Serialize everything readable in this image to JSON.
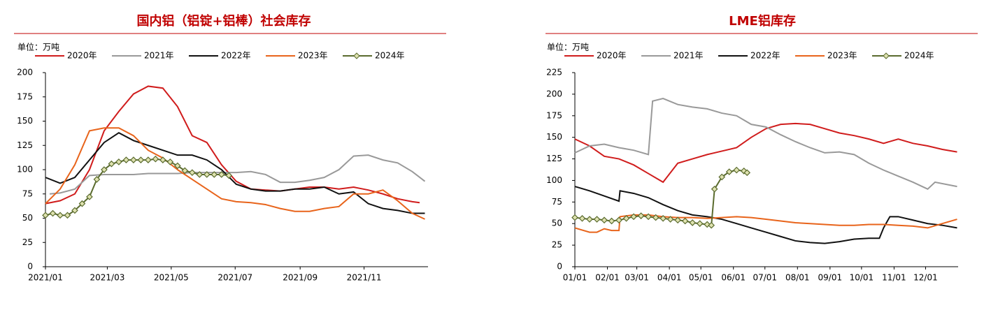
{
  "chart_data": [
    {
      "type": "line",
      "title": "国内铝（铝锭+铝棒）社会库存",
      "unit_label": "单位：万吨",
      "xlim": [
        0,
        365
      ],
      "xticks": [
        {
          "value": 0,
          "label": "2021/01"
        },
        {
          "value": 59,
          "label": "2021/03"
        },
        {
          "value": 120,
          "label": "2021/05"
        },
        {
          "value": 181,
          "label": "2021/07"
        },
        {
          "value": 243,
          "label": "2021/09"
        },
        {
          "value": 304,
          "label": "2021/11"
        }
      ],
      "ylim": [
        0,
        200
      ],
      "yticks": [
        0,
        25,
        50,
        75,
        100,
        125,
        150,
        175,
        200
      ],
      "series": [
        {
          "name": "2020年",
          "color": "#d01c1c",
          "x": [
            0,
            14,
            28,
            42,
            56,
            70,
            84,
            98,
            112,
            126,
            140,
            154,
            168,
            182,
            196,
            210,
            224,
            238,
            252,
            266,
            280,
            294,
            308,
            322,
            336,
            350,
            357
          ],
          "values": [
            65,
            68,
            75,
            100,
            140,
            160,
            178,
            186,
            184,
            165,
            135,
            128,
            105,
            88,
            80,
            79,
            78,
            80,
            82,
            82,
            80,
            82,
            79,
            75,
            70,
            67,
            66
          ]
        },
        {
          "name": "2021年",
          "color": "#999999",
          "x": [
            4,
            14,
            28,
            42,
            56,
            70,
            84,
            98,
            112,
            126,
            140,
            154,
            168,
            182,
            196,
            210,
            224,
            238,
            252,
            266,
            280,
            294,
            308,
            322,
            336,
            350,
            362
          ],
          "values": [
            75,
            76,
            80,
            94,
            95,
            95,
            95,
            96,
            96,
            96,
            97,
            97,
            97,
            97,
            98,
            95,
            87,
            87,
            89,
            92,
            100,
            114,
            115,
            110,
            107,
            98,
            88
          ]
        },
        {
          "name": "2022年",
          "color": "#111111",
          "x": [
            0,
            14,
            28,
            42,
            56,
            70,
            84,
            98,
            112,
            126,
            140,
            154,
            168,
            182,
            196,
            210,
            224,
            238,
            252,
            266,
            280,
            294,
            308,
            322,
            336,
            350,
            362
          ],
          "values": [
            92,
            86,
            92,
            110,
            128,
            138,
            130,
            125,
            120,
            115,
            115,
            110,
            100,
            85,
            80,
            78,
            78,
            80,
            80,
            82,
            75,
            77,
            65,
            60,
            58,
            55,
            55
          ]
        },
        {
          "name": "2023年",
          "color": "#e8641b",
          "x": [
            0,
            14,
            28,
            42,
            56,
            70,
            84,
            98,
            112,
            126,
            140,
            154,
            168,
            182,
            196,
            210,
            224,
            238,
            252,
            266,
            280,
            294,
            308,
            322,
            336,
            350,
            362
          ],
          "values": [
            65,
            80,
            105,
            140,
            143,
            143,
            135,
            120,
            112,
            100,
            90,
            80,
            70,
            67,
            66,
            64,
            60,
            57,
            57,
            60,
            62,
            75,
            75,
            79,
            68,
            55,
            49
          ]
        },
        {
          "name": "2024年",
          "color": "#5a6b2e",
          "marker": "diamond",
          "x": [
            0,
            7,
            14,
            21,
            28,
            35,
            42,
            49,
            56,
            63,
            70,
            77,
            84,
            91,
            98,
            105,
            112,
            119,
            126,
            133,
            140,
            147,
            154,
            161,
            168,
            175
          ],
          "values": [
            53,
            55,
            53,
            53,
            58,
            65,
            72,
            90,
            100,
            106,
            108,
            110,
            110,
            110,
            110,
            111,
            110,
            108,
            104,
            99,
            97,
            95,
            95,
            95,
            95,
            94
          ]
        }
      ]
    },
    {
      "type": "line",
      "title": "LME铝库存",
      "unit_label": "单位：万吨",
      "xlim": [
        0,
        365
      ],
      "xticks": [
        {
          "value": 0,
          "label": "01/01"
        },
        {
          "value": 31,
          "label": "02/01"
        },
        {
          "value": 59,
          "label": "03/01"
        },
        {
          "value": 90,
          "label": "04/01"
        },
        {
          "value": 120,
          "label": "05/01"
        },
        {
          "value": 151,
          "label": "06/01"
        },
        {
          "value": 181,
          "label": "07/01"
        },
        {
          "value": 212,
          "label": "08/01"
        },
        {
          "value": 243,
          "label": "09/01"
        },
        {
          "value": 273,
          "label": "10/01"
        },
        {
          "value": 304,
          "label": "11/01"
        },
        {
          "value": 334,
          "label": "12/01"
        }
      ],
      "ylim": [
        0,
        225
      ],
      "yticks": [
        0,
        25,
        50,
        75,
        100,
        125,
        150,
        175,
        200,
        225
      ],
      "series": [
        {
          "name": "2020年",
          "color": "#d01c1c",
          "x": [
            0,
            14,
            28,
            42,
            56,
            70,
            84,
            98,
            112,
            126,
            140,
            154,
            168,
            182,
            196,
            210,
            224,
            238,
            252,
            266,
            280,
            294,
            308,
            322,
            336,
            350,
            364
          ],
          "values": [
            148,
            140,
            128,
            125,
            118,
            108,
            98,
            120,
            125,
            130,
            134,
            138,
            150,
            160,
            165,
            166,
            165,
            160,
            155,
            152,
            148,
            143,
            148,
            143,
            140,
            136,
            133
          ]
        },
        {
          "name": "2021年",
          "color": "#999999",
          "x": [
            0,
            14,
            28,
            42,
            56,
            70,
            74,
            84,
            98,
            112,
            126,
            140,
            154,
            168,
            182,
            196,
            210,
            224,
            238,
            252,
            266,
            280,
            294,
            308,
            322,
            336,
            343,
            364
          ],
          "values": [
            132,
            140,
            142,
            138,
            135,
            130,
            192,
            195,
            188,
            185,
            183,
            178,
            175,
            165,
            162,
            153,
            145,
            138,
            132,
            133,
            130,
            120,
            112,
            105,
            98,
            90,
            98,
            93
          ]
        },
        {
          "name": "2022年",
          "color": "#111111",
          "x": [
            0,
            14,
            28,
            42,
            43,
            56,
            70,
            84,
            98,
            112,
            126,
            140,
            154,
            168,
            182,
            196,
            210,
            224,
            238,
            252,
            266,
            280,
            290,
            294,
            300,
            308,
            322,
            336,
            350,
            364
          ],
          "values": [
            93,
            88,
            82,
            76,
            88,
            85,
            80,
            72,
            65,
            60,
            58,
            55,
            50,
            45,
            40,
            35,
            30,
            28,
            27,
            29,
            32,
            33,
            33,
            45,
            58,
            58,
            54,
            50,
            48,
            45
          ]
        },
        {
          "name": "2023年",
          "color": "#e8641b",
          "x": [
            0,
            14,
            21,
            28,
            35,
            42,
            43,
            56,
            70,
            84,
            98,
            112,
            126,
            140,
            154,
            168,
            182,
            196,
            210,
            224,
            238,
            252,
            266,
            280,
            294,
            308,
            322,
            336,
            350,
            364
          ],
          "values": [
            45,
            40,
            40,
            44,
            42,
            42,
            58,
            60,
            60,
            58,
            57,
            57,
            56,
            57,
            58,
            57,
            55,
            53,
            51,
            50,
            49,
            48,
            48,
            49,
            49,
            48,
            47,
            45,
            50,
            55
          ]
        },
        {
          "name": "2024年",
          "color": "#5a6b2e",
          "marker": "diamond",
          "x": [
            0,
            7,
            14,
            21,
            28,
            35,
            42,
            49,
            56,
            63,
            70,
            77,
            84,
            91,
            98,
            105,
            112,
            119,
            126,
            130,
            133,
            140,
            147,
            154,
            161,
            164
          ],
          "values": [
            57,
            56,
            55,
            55,
            54,
            53,
            54,
            56,
            58,
            59,
            58,
            57,
            56,
            55,
            54,
            53,
            51,
            50,
            49,
            48,
            90,
            104,
            110,
            112,
            111,
            109
          ]
        }
      ]
    }
  ]
}
